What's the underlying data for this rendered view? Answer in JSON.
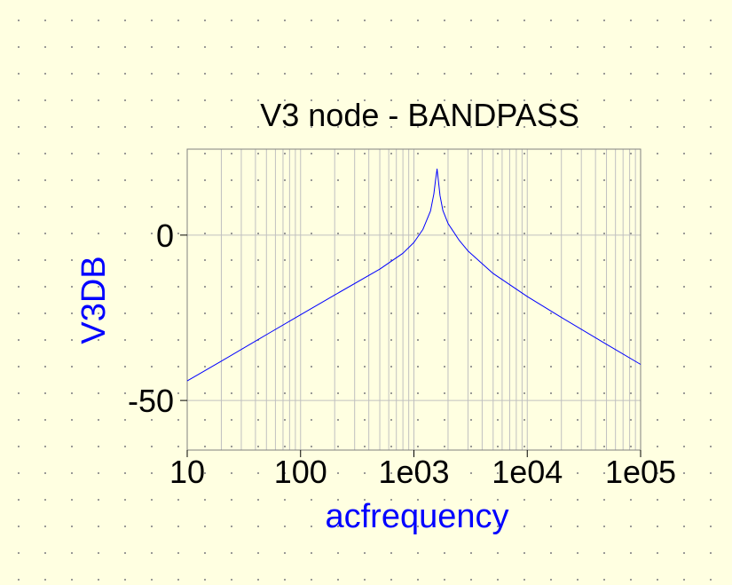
{
  "chart_data": {
    "type": "line",
    "title": "V3 node - BANDPASS",
    "xlabel": "acfrequency",
    "ylabel": "V3DB",
    "x_scale": "log",
    "xlim": [
      10,
      100000
    ],
    "ylim": [
      -65,
      26
    ],
    "x_ticks": [
      10,
      100,
      1000,
      10000,
      100000
    ],
    "x_tick_labels": [
      "10",
      "100",
      "1e03",
      "1e04",
      "1e05"
    ],
    "y_ticks": [
      0,
      -50
    ],
    "y_tick_labels": [
      "0",
      "-50"
    ],
    "grid": true,
    "series": [
      {
        "color": "#0000ff",
        "x": [
          10,
          20,
          50,
          100,
          200,
          500,
          800,
          1000,
          1200,
          1400,
          1500,
          1550,
          1600,
          1650,
          1700,
          1800,
          2000,
          2500,
          3000,
          5000,
          10000,
          20000,
          50000,
          100000
        ],
        "y": [
          -44.1,
          -38.1,
          -30.1,
          -24.1,
          -18.1,
          -10.3,
          -5.5,
          -2.2,
          1.7,
          7.3,
          12.5,
          16.5,
          20.0,
          16.0,
          12.0,
          7.5,
          3.5,
          -1.5,
          -4.8,
          -11.6,
          -18.6,
          -24.9,
          -33.0,
          -39.1
        ]
      }
    ],
    "colors": {
      "background": "#ffffe1",
      "plot_background": "#ffffe1",
      "grid": "#c0c0c0",
      "line": "#0000ff",
      "axis_label": "#0000ff"
    }
  }
}
